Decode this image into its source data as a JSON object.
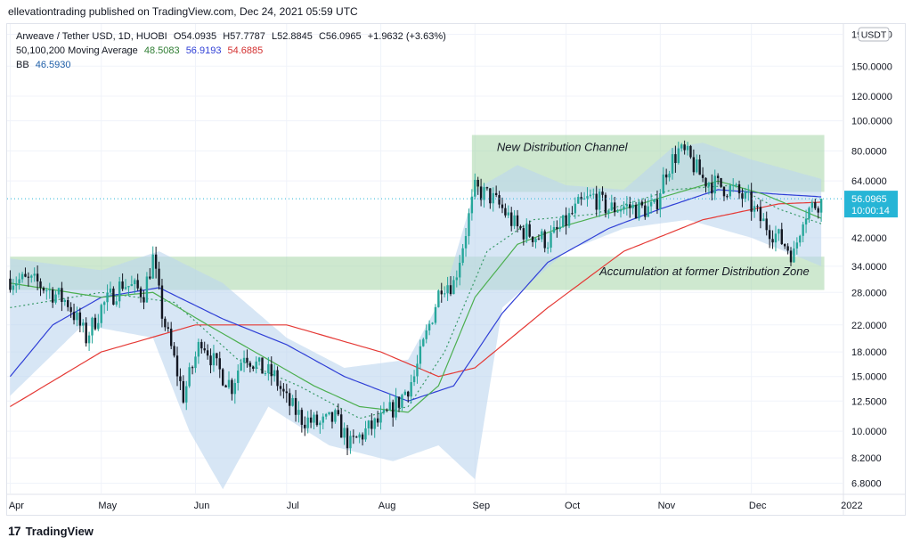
{
  "publisher": "ellevationtrading published on TradingView.com, Dec 24, 2021 05:59 UTC",
  "legend": {
    "symbol": "Arweave / Tether USD, 1D, HUOBI",
    "o_label": "O",
    "o_value": "54.0935",
    "h_label": "H",
    "h_value": "57.7787",
    "l_label": "L",
    "l_value": "52.8845",
    "c_label": "C",
    "c_value": "56.0965",
    "change": "+1.9632 (+3.63%)",
    "ma_label": "50,100,200 Moving Average",
    "ma50": "48.5083",
    "ma100": "56.9193",
    "ma200": "54.6885",
    "bb_label": "BB",
    "bb_value": "46.5930"
  },
  "footer": {
    "brand": "TradingView",
    "logo_glyph": "17"
  },
  "colors": {
    "up": "#26a69a",
    "down": "#131722",
    "ma50": "#4caf50",
    "ma100": "#2f3fd6",
    "ma200": "#e53935",
    "bb_fill": "#bcd6ef",
    "zone": "#a5d6a7",
    "price_tag": "#26b5d6"
  },
  "chart_data": {
    "type": "candlestick",
    "y_scale": "log",
    "y_ticks": [
      {
        "label": "190.0000",
        "value": 190
      },
      {
        "label": "150.0000",
        "value": 150
      },
      {
        "label": "120.0000",
        "value": 120
      },
      {
        "label": "100.0000",
        "value": 100
      },
      {
        "label": "80.0000",
        "value": 80
      },
      {
        "label": "64.0000",
        "value": 64
      },
      {
        "label": "42.0000",
        "value": 42
      },
      {
        "label": "34.0000",
        "value": 34
      },
      {
        "label": "28.0000",
        "value": 28
      },
      {
        "label": "22.0000",
        "value": 22
      },
      {
        "label": "18.0000",
        "value": 18
      },
      {
        "label": "15.0000",
        "value": 15
      },
      {
        "label": "12.5000",
        "value": 12.5
      },
      {
        "label": "10.0000",
        "value": 10
      },
      {
        "label": "8.2000",
        "value": 8.2
      },
      {
        "label": "6.8000",
        "value": 6.8
      }
    ],
    "ylim": [
      6.3,
      205
    ],
    "currency_label": "USDT",
    "x_range": [
      "2021-04-01",
      "2021-12-31"
    ],
    "x_labels": [
      {
        "label": "Apr",
        "date": "2021-04-01"
      },
      {
        "label": "May",
        "date": "2021-05-01"
      },
      {
        "label": "Jun",
        "date": "2021-06-01"
      },
      {
        "label": "Jul",
        "date": "2021-07-01"
      },
      {
        "label": "Aug",
        "date": "2021-08-01"
      },
      {
        "label": "Sep",
        "date": "2021-09-01"
      },
      {
        "label": "Oct",
        "date": "2021-10-01"
      },
      {
        "label": "Nov",
        "date": "2021-11-01"
      },
      {
        "label": "Dec",
        "date": "2021-12-01"
      },
      {
        "label": "2022",
        "date": "2022-01-01"
      }
    ],
    "last_price": {
      "value": 56.0965,
      "label": "56.0965",
      "countdown": "10:00:14"
    },
    "zones": [
      {
        "name": "New Distribution Channel",
        "from": "2021-08-31",
        "to": "2021-12-25",
        "y_low": 59,
        "y_high": 90
      },
      {
        "name": "Accumulation at former Distribution Zone",
        "from": "2021-04-01",
        "to": "2021-12-25",
        "y_low": 28.5,
        "y_high": 36.5
      }
    ],
    "price_path": [
      [
        "2021-04-01",
        31
      ],
      [
        "2021-04-10",
        30
      ],
      [
        "2021-04-20",
        26
      ],
      [
        "2021-04-26",
        20
      ],
      [
        "2021-05-01",
        25
      ],
      [
        "2021-05-08",
        30
      ],
      [
        "2021-05-15",
        28
      ],
      [
        "2021-05-18",
        36
      ],
      [
        "2021-05-21",
        24
      ],
      [
        "2021-05-28",
        13
      ],
      [
        "2021-06-03",
        20
      ],
      [
        "2021-06-08",
        16
      ],
      [
        "2021-06-13",
        14
      ],
      [
        "2021-06-17",
        18
      ],
      [
        "2021-06-22",
        16
      ],
      [
        "2021-06-27",
        15
      ],
      [
        "2021-07-01",
        12.5
      ],
      [
        "2021-07-06",
        11
      ],
      [
        "2021-07-12",
        10.5
      ],
      [
        "2021-07-17",
        11
      ],
      [
        "2021-07-22",
        9
      ],
      [
        "2021-07-27",
        10
      ],
      [
        "2021-08-02",
        11
      ],
      [
        "2021-08-07",
        12.5
      ],
      [
        "2021-08-12",
        15
      ],
      [
        "2021-08-17",
        22
      ],
      [
        "2021-08-21",
        30
      ],
      [
        "2021-08-25",
        30
      ],
      [
        "2021-08-28",
        40
      ],
      [
        "2021-09-01",
        60
      ],
      [
        "2021-09-06",
        57
      ],
      [
        "2021-09-10",
        52
      ],
      [
        "2021-09-15",
        45
      ],
      [
        "2021-09-20",
        43
      ],
      [
        "2021-09-25",
        41
      ],
      [
        "2021-09-30",
        46
      ],
      [
        "2021-10-05",
        53
      ],
      [
        "2021-10-10",
        57
      ],
      [
        "2021-10-15",
        52
      ],
      [
        "2021-10-20",
        53
      ],
      [
        "2021-10-25",
        52
      ],
      [
        "2021-10-30",
        52
      ],
      [
        "2021-11-03",
        70
      ],
      [
        "2021-11-07",
        80
      ],
      [
        "2021-11-10",
        77
      ],
      [
        "2021-11-15",
        65
      ],
      [
        "2021-11-20",
        62
      ],
      [
        "2021-11-25",
        60
      ],
      [
        "2021-11-30",
        55
      ],
      [
        "2021-12-04",
        48
      ],
      [
        "2021-12-08",
        44
      ],
      [
        "2021-12-12",
        40
      ],
      [
        "2021-12-15",
        37
      ],
      [
        "2021-12-18",
        50
      ],
      [
        "2021-12-24",
        56
      ]
    ],
    "ma50": [
      [
        "2021-04-01",
        30
      ],
      [
        "2021-05-01",
        27
      ],
      [
        "2021-05-18",
        28
      ],
      [
        "2021-06-05",
        22
      ],
      [
        "2021-06-25",
        17
      ],
      [
        "2021-07-10",
        14
      ],
      [
        "2021-07-25",
        12
      ],
      [
        "2021-08-10",
        11.5
      ],
      [
        "2021-08-20",
        14
      ],
      [
        "2021-09-01",
        27
      ],
      [
        "2021-09-15",
        40
      ],
      [
        "2021-10-01",
        46
      ],
      [
        "2021-10-20",
        52
      ],
      [
        "2021-11-05",
        58
      ],
      [
        "2021-11-20",
        64
      ],
      [
        "2021-12-05",
        58
      ],
      [
        "2021-12-24",
        48.5
      ]
    ],
    "ma100": [
      [
        "2021-04-01",
        15
      ],
      [
        "2021-04-15",
        22
      ],
      [
        "2021-05-01",
        27
      ],
      [
        "2021-05-20",
        29
      ],
      [
        "2021-06-10",
        23
      ],
      [
        "2021-07-01",
        19
      ],
      [
        "2021-07-20",
        15
      ],
      [
        "2021-08-10",
        12.5
      ],
      [
        "2021-08-25",
        14
      ],
      [
        "2021-09-10",
        24
      ],
      [
        "2021-09-25",
        35
      ],
      [
        "2021-10-15",
        45
      ],
      [
        "2021-11-01",
        52
      ],
      [
        "2021-11-20",
        60
      ],
      [
        "2021-12-10",
        58
      ],
      [
        "2021-12-24",
        56.9
      ]
    ],
    "ma200": [
      [
        "2021-04-01",
        12
      ],
      [
        "2021-05-01",
        18
      ],
      [
        "2021-06-01",
        22
      ],
      [
        "2021-07-01",
        22
      ],
      [
        "2021-08-01",
        18
      ],
      [
        "2021-08-20",
        15
      ],
      [
        "2021-09-01",
        16
      ],
      [
        "2021-09-25",
        25
      ],
      [
        "2021-10-20",
        38
      ],
      [
        "2021-11-15",
        48
      ],
      [
        "2021-12-10",
        54
      ],
      [
        "2021-12-24",
        54.7
      ]
    ],
    "bb_upper": [
      [
        "2021-04-01",
        36
      ],
      [
        "2021-05-01",
        33
      ],
      [
        "2021-05-20",
        38
      ],
      [
        "2021-06-10",
        30
      ],
      [
        "2021-07-01",
        20
      ],
      [
        "2021-07-20",
        16
      ],
      [
        "2021-08-10",
        17
      ],
      [
        "2021-08-22",
        28
      ],
      [
        "2021-09-01",
        60
      ],
      [
        "2021-09-15",
        72
      ],
      [
        "2021-10-01",
        62
      ],
      [
        "2021-10-20",
        60
      ],
      [
        "2021-11-05",
        82
      ],
      [
        "2021-11-15",
        85
      ],
      [
        "2021-12-01",
        75
      ],
      [
        "2021-12-24",
        65
      ]
    ],
    "bb_lower": [
      [
        "2021-04-01",
        13
      ],
      [
        "2021-04-25",
        22
      ],
      [
        "2021-05-18",
        20
      ],
      [
        "2021-05-30",
        10
      ],
      [
        "2021-06-10",
        6.5
      ],
      [
        "2021-06-25",
        12
      ],
      [
        "2021-07-15",
        9
      ],
      [
        "2021-08-05",
        8
      ],
      [
        "2021-08-20",
        9
      ],
      [
        "2021-09-01",
        7
      ],
      [
        "2021-09-10",
        25
      ],
      [
        "2021-10-01",
        38
      ],
      [
        "2021-10-20",
        45
      ],
      [
        "2021-11-10",
        48
      ],
      [
        "2021-12-01",
        42
      ],
      [
        "2021-12-24",
        34
      ]
    ],
    "bb_basis": [
      [
        "2021-04-01",
        25
      ],
      [
        "2021-05-01",
        28
      ],
      [
        "2021-05-25",
        26
      ],
      [
        "2021-06-15",
        17
      ],
      [
        "2021-07-05",
        14
      ],
      [
        "2021-07-25",
        11
      ],
      [
        "2021-08-10",
        12
      ],
      [
        "2021-08-22",
        18
      ],
      [
        "2021-09-05",
        38
      ],
      [
        "2021-09-20",
        48
      ],
      [
        "2021-10-10",
        50
      ],
      [
        "2021-11-05",
        60
      ],
      [
        "2021-11-25",
        62
      ],
      [
        "2021-12-10",
        52
      ],
      [
        "2021-12-24",
        46.6
      ]
    ]
  }
}
